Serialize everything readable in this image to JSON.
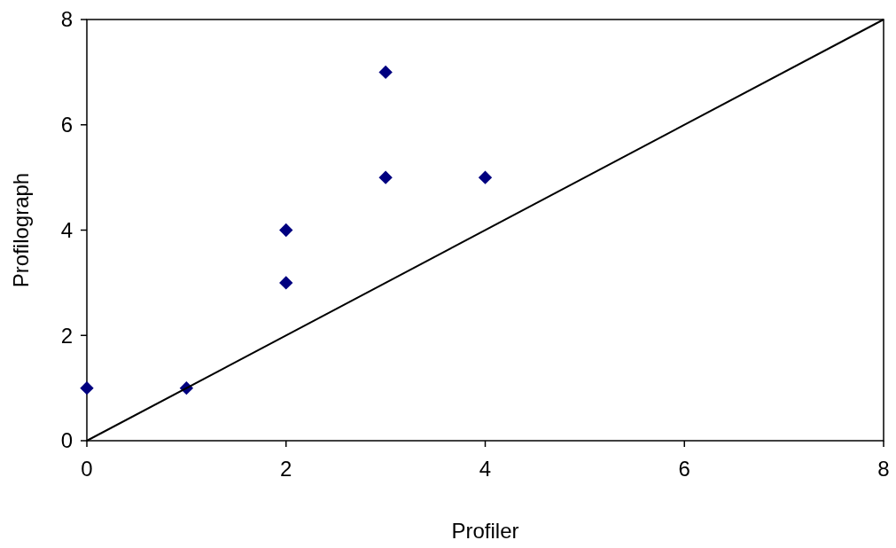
{
  "chart_data": {
    "type": "scatter",
    "xlabel": "Profiler",
    "ylabel": "Profilograph",
    "xlim": [
      0,
      8
    ],
    "ylim": [
      0,
      8
    ],
    "xticks": [
      0,
      2,
      4,
      6,
      8
    ],
    "yticks": [
      0,
      2,
      4,
      6,
      8
    ],
    "series": [
      {
        "color": "#000080",
        "marker": "diamond",
        "x": [
          0,
          1,
          2,
          2,
          3,
          3,
          4
        ],
        "values": [
          1,
          1,
          4,
          3,
          7,
          5,
          5
        ]
      },
      {
        "type": "line",
        "color": "#000000",
        "marker": "none",
        "line_style": "solid",
        "x": [
          0,
          8
        ],
        "values": [
          0,
          8
        ]
      }
    ]
  }
}
